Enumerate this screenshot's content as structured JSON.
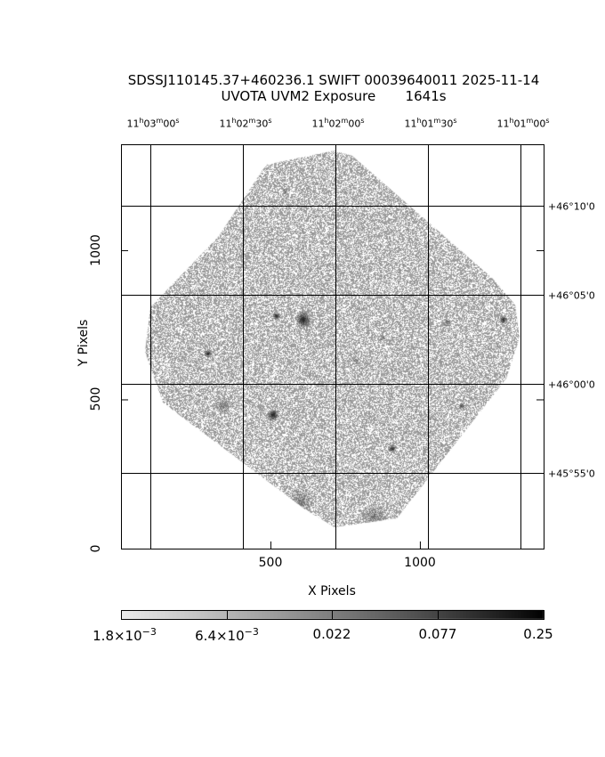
{
  "chart_data": {
    "type": "heatmap",
    "title": "SDSSJ110145.37+460236.1 SWIFT 00039640011 2025-11-14",
    "subtitle": "UVOTA UVM2 Exposure       1641s",
    "xlabel": "X Pixels",
    "ylabel": "Y Pixels",
    "xlim": [
      0,
      1414
    ],
    "ylim": [
      0,
      1355
    ],
    "x_ticks": [
      500,
      1000
    ],
    "y_ticks": [
      0,
      500,
      1000
    ],
    "x_tick_labels": [
      "500",
      "1000"
    ],
    "y_tick_labels": [
      "0",
      "500",
      "1000"
    ],
    "ra_labels": [
      {
        "h": "11",
        "m": "03",
        "s": "00"
      },
      {
        "h": "11",
        "m": "02",
        "s": "30"
      },
      {
        "h": "11",
        "m": "02",
        "s": "00"
      },
      {
        "h": "11",
        "m": "01",
        "s": "30"
      },
      {
        "h": "11",
        "m": "01",
        "s": "00"
      }
    ],
    "dec_labels": [
      "+46°10'0",
      "+46°05'0",
      "+46°00'0",
      "+45°55'0"
    ],
    "grid": true,
    "colormap": "grayscale inverted",
    "colorbar": {
      "labels": [
        "1.8×10",
        "6.4×10",
        "0.022",
        "0.077",
        "0.25"
      ],
      "exponents": [
        "−3",
        "−3",
        "",
        "",
        ""
      ],
      "range": [
        0.0018,
        0.25
      ],
      "scale": "log"
    },
    "colors": {
      "background_noise": "#a0a0a0",
      "source": "#000000",
      "frame": "#000000"
    }
  }
}
